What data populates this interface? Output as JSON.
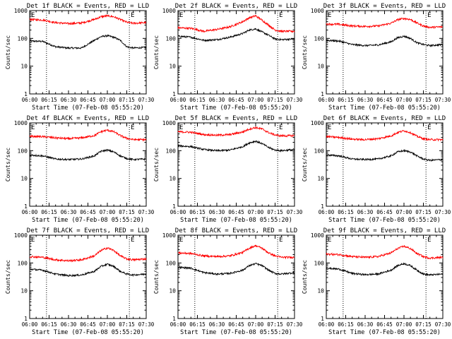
{
  "xlabel": "Start Time (07-Feb-08 05:55:20)",
  "ylabel": "Counts/sec",
  "x_ticks": [
    "06:00",
    "06:15",
    "06:30",
    "06:45",
    "07:00",
    "07:15",
    "07:30"
  ],
  "y_ticks": [
    "1",
    "10",
    "100",
    "1000"
  ],
  "e_marker": "E",
  "colors": {
    "events": "#000000",
    "lld": "#ff0000",
    "axes": "#000000"
  },
  "chart_data": [
    {
      "type": "line",
      "title": "Det 1f BLACK = Events, RED = LLD",
      "xlabel": "Start Time (07-Feb-08 05:55:20)",
      "ylabel": "Counts/sec",
      "x_unit": "minutes since 06:00",
      "xlim": [
        0,
        90
      ],
      "ylim": [
        1,
        1000
      ],
      "yscale": "log",
      "vlines": [
        13,
        77
      ],
      "x": [
        0,
        10,
        20,
        30,
        40,
        50,
        55,
        60,
        65,
        70,
        75,
        80,
        90
      ],
      "series": [
        {
          "name": "Events",
          "color": "#000000",
          "values": [
            80,
            78,
            50,
            45,
            45,
            85,
            115,
            125,
            110,
            85,
            50,
            45,
            47
          ]
        },
        {
          "name": "LLD",
          "color": "#ff0000",
          "values": [
            480,
            460,
            370,
            340,
            360,
            480,
            600,
            650,
            600,
            480,
            380,
            350,
            370
          ]
        }
      ]
    },
    {
      "type": "line",
      "title": "Det 2f BLACK = Events, RED = LLD",
      "xlabel": "Start Time (07-Feb-08 05:55:20)",
      "ylabel": "Counts/sec",
      "x_unit": "minutes since 06:00",
      "xlim": [
        0,
        90
      ],
      "ylim": [
        1,
        1000
      ],
      "yscale": "log",
      "vlines": [
        13,
        77
      ],
      "x": [
        0,
        10,
        20,
        30,
        40,
        50,
        55,
        60,
        65,
        70,
        75,
        80,
        90
      ],
      "series": [
        {
          "name": "Events",
          "color": "#000000",
          "values": [
            120,
            110,
            85,
            90,
            110,
            150,
            200,
            220,
            170,
            130,
            95,
            90,
            95
          ]
        },
        {
          "name": "LLD",
          "color": "#ff0000",
          "values": [
            240,
            230,
            180,
            210,
            260,
            400,
            550,
            650,
            450,
            300,
            200,
            180,
            180
          ]
        }
      ]
    },
    {
      "type": "line",
      "title": "Det 3f BLACK = Events, RED = LLD",
      "xlabel": "Start Time (07-Feb-08 05:55:20)",
      "ylabel": "Counts/sec",
      "x_unit": "minutes since 06:00",
      "xlim": [
        0,
        90
      ],
      "ylim": [
        1,
        1000
      ],
      "yscale": "log",
      "vlines": [
        13,
        77
      ],
      "x": [
        0,
        10,
        20,
        30,
        40,
        50,
        55,
        60,
        65,
        70,
        75,
        80,
        90
      ],
      "series": [
        {
          "name": "Events",
          "color": "#000000",
          "values": [
            85,
            80,
            60,
            55,
            58,
            75,
            105,
            120,
            100,
            70,
            60,
            55,
            60
          ]
        },
        {
          "name": "LLD",
          "color": "#ff0000",
          "values": [
            330,
            320,
            280,
            270,
            280,
            350,
            470,
            520,
            480,
            360,
            280,
            250,
            260
          ]
        }
      ]
    },
    {
      "type": "line",
      "title": "Det 4f BLACK = Events, RED = LLD",
      "xlabel": "Start Time (07-Feb-08 05:55:20)",
      "ylabel": "Counts/sec",
      "x_unit": "minutes since 06:00",
      "xlim": [
        0,
        90
      ],
      "ylim": [
        1,
        1000
      ],
      "yscale": "log",
      "vlines": [
        13,
        77
      ],
      "x": [
        0,
        10,
        20,
        30,
        40,
        50,
        55,
        60,
        65,
        70,
        75,
        80,
        90
      ],
      "series": [
        {
          "name": "Events",
          "color": "#000000",
          "values": [
            70,
            65,
            50,
            48,
            50,
            65,
            95,
            105,
            90,
            65,
            52,
            48,
            50
          ]
        },
        {
          "name": "LLD",
          "color": "#ff0000",
          "values": [
            330,
            320,
            290,
            270,
            290,
            350,
            480,
            550,
            480,
            350,
            280,
            250,
            250
          ]
        }
      ]
    },
    {
      "type": "line",
      "title": "Det 5f BLACK = Events, RED = LLD",
      "xlabel": "Start Time (07-Feb-08 05:55:20)",
      "ylabel": "Counts/sec",
      "x_unit": "minutes since 06:00",
      "xlim": [
        0,
        90
      ],
      "ylim": [
        1,
        1000
      ],
      "yscale": "log",
      "vlines": [
        13,
        77
      ],
      "x": [
        0,
        10,
        20,
        30,
        40,
        50,
        55,
        60,
        65,
        70,
        75,
        80,
        90
      ],
      "series": [
        {
          "name": "Events",
          "color": "#000000",
          "values": [
            150,
            140,
            110,
            100,
            105,
            140,
            190,
            220,
            180,
            130,
            105,
            100,
            110
          ]
        },
        {
          "name": "LLD",
          "color": "#ff0000",
          "values": [
            480,
            460,
            380,
            360,
            380,
            470,
            600,
            680,
            600,
            450,
            370,
            340,
            350
          ]
        }
      ]
    },
    {
      "type": "line",
      "title": "Det 6f BLACK = Events, RED = LLD",
      "xlabel": "Start Time (07-Feb-08 05:55:20)",
      "ylabel": "Counts/sec",
      "x_unit": "minutes since 06:00",
      "xlim": [
        0,
        90
      ],
      "ylim": [
        1,
        1000
      ],
      "yscale": "log",
      "vlines": [
        13,
        77
      ],
      "x": [
        0,
        10,
        20,
        30,
        40,
        50,
        55,
        60,
        65,
        70,
        75,
        80,
        90
      ],
      "series": [
        {
          "name": "Events",
          "color": "#000000",
          "values": [
            70,
            65,
            50,
            48,
            50,
            65,
            90,
            100,
            90,
            65,
            50,
            45,
            48
          ]
        },
        {
          "name": "LLD",
          "color": "#ff0000",
          "values": [
            320,
            300,
            260,
            250,
            270,
            340,
            450,
            520,
            450,
            330,
            270,
            250,
            250
          ]
        }
      ]
    },
    {
      "type": "line",
      "title": "Det 7f BLACK = Events, RED = LLD",
      "xlabel": "Start Time (07-Feb-08 05:55:20)",
      "ylabel": "Counts/sec",
      "x_unit": "minutes since 06:00",
      "xlim": [
        0,
        90
      ],
      "ylim": [
        1,
        1000
      ],
      "yscale": "log",
      "vlines": [
        13,
        77
      ],
      "x": [
        0,
        10,
        20,
        30,
        40,
        50,
        55,
        60,
        65,
        70,
        75,
        80,
        90
      ],
      "series": [
        {
          "name": "Events",
          "color": "#000000",
          "values": [
            60,
            55,
            40,
            35,
            37,
            50,
            75,
            90,
            75,
            50,
            40,
            37,
            40
          ]
        },
        {
          "name": "LLD",
          "color": "#ff0000",
          "values": [
            170,
            160,
            130,
            120,
            130,
            180,
            280,
            350,
            280,
            180,
            140,
            130,
            140
          ]
        }
      ]
    },
    {
      "type": "line",
      "title": "Det 8f BLACK = Events, RED = LLD",
      "xlabel": "Start Time (07-Feb-08 05:55:20)",
      "ylabel": "Counts/sec",
      "x_unit": "minutes since 06:00",
      "xlim": [
        0,
        90
      ],
      "ylim": [
        1,
        1000
      ],
      "yscale": "log",
      "vlines": [
        13,
        77
      ],
      "x": [
        0,
        10,
        20,
        30,
        40,
        50,
        55,
        60,
        65,
        70,
        75,
        80,
        90
      ],
      "series": [
        {
          "name": "Events",
          "color": "#000000",
          "values": [
            70,
            65,
            45,
            40,
            42,
            55,
            80,
            95,
            80,
            55,
            42,
            40,
            45
          ]
        },
        {
          "name": "LLD",
          "color": "#ff0000",
          "values": [
            230,
            220,
            180,
            170,
            180,
            240,
            340,
            420,
            340,
            230,
            180,
            160,
            160
          ]
        }
      ]
    },
    {
      "type": "line",
      "title": "Det 9f BLACK = Events, RED = LLD",
      "xlabel": "Start Time (07-Feb-08 05:55:20)",
      "ylabel": "Counts/sec",
      "x_unit": "minutes since 06:00",
      "xlim": [
        0,
        90
      ],
      "ylim": [
        1,
        1000
      ],
      "yscale": "log",
      "vlines": [
        13,
        77
      ],
      "x": [
        0,
        10,
        20,
        30,
        40,
        50,
        55,
        60,
        65,
        70,
        75,
        80,
        90
      ],
      "series": [
        {
          "name": "Events",
          "color": "#000000",
          "values": [
            65,
            60,
            42,
            38,
            40,
            55,
            80,
            95,
            80,
            55,
            40,
            37,
            40
          ]
        },
        {
          "name": "LLD",
          "color": "#ff0000",
          "values": [
            210,
            200,
            170,
            160,
            170,
            230,
            330,
            400,
            330,
            220,
            170,
            150,
            160
          ]
        }
      ]
    }
  ]
}
